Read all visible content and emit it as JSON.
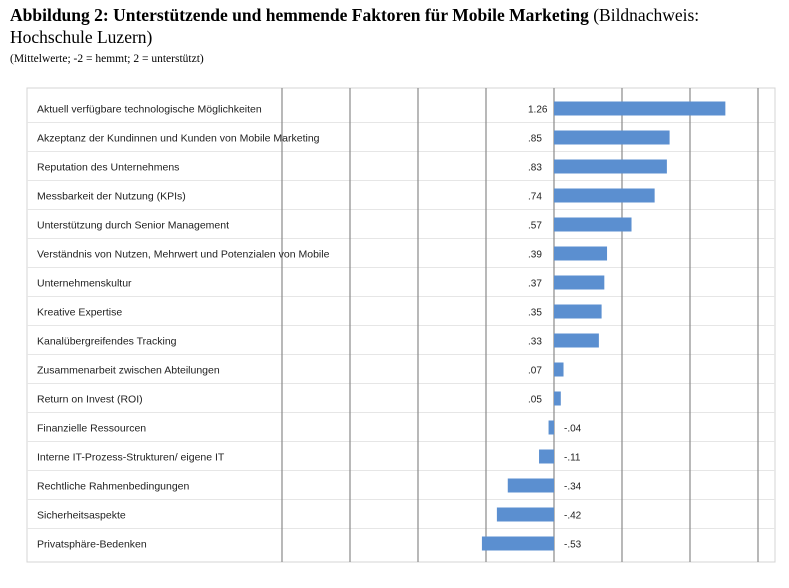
{
  "heading": {
    "title_bold": "Abbildung 2: Unterstützende und hemmende Faktoren für Mobile Marketing",
    "title_rest": " (Bildnachweis: Hochschule Luzern)",
    "subtitle": "(Mittelwerte; -2 = hemmt; 2 = unterstützt)"
  },
  "chart_data": {
    "type": "bar",
    "orientation": "horizontal",
    "xlim": [
      -2,
      2
    ],
    "grid": true,
    "bar_color": "#5b8fd0",
    "categories": [
      "Aktuell verfügbare technologische Möglichkeiten",
      "Akzeptanz der Kundinnen und Kunden von Mobile Marketing",
      "Reputation des Unternehmens",
      "Messbarkeit der Nutzung (KPIs)",
      "Unterstützung durch Senior Management",
      "Verständnis von Nutzen, Mehrwert und Potenzialen von Mobile",
      "Unternehmenskultur",
      "Kreative Expertise",
      "Kanalübergreifendes Tracking",
      "Zusammenarbeit zwischen Abteilungen",
      "Return on Invest (ROI)",
      "Finanzielle Ressourcen",
      "Interne IT-Prozess-Strukturen/ eigene IT",
      "Rechtliche Rahmenbedingungen",
      "Sicherheitsaspekte",
      "Privatsphäre-Bedenken"
    ],
    "values": [
      1.26,
      0.85,
      0.83,
      0.74,
      0.57,
      0.39,
      0.37,
      0.35,
      0.33,
      0.07,
      0.05,
      -0.04,
      -0.11,
      -0.34,
      -0.42,
      -0.53
    ],
    "value_labels": [
      "1.26",
      ".85",
      ".83",
      ".74",
      ".57",
      ".39",
      ".37",
      ".35",
      ".33",
      ".07",
      ".05",
      "-.04",
      "-.11",
      "-.34",
      "-.42",
      "-.53"
    ]
  }
}
